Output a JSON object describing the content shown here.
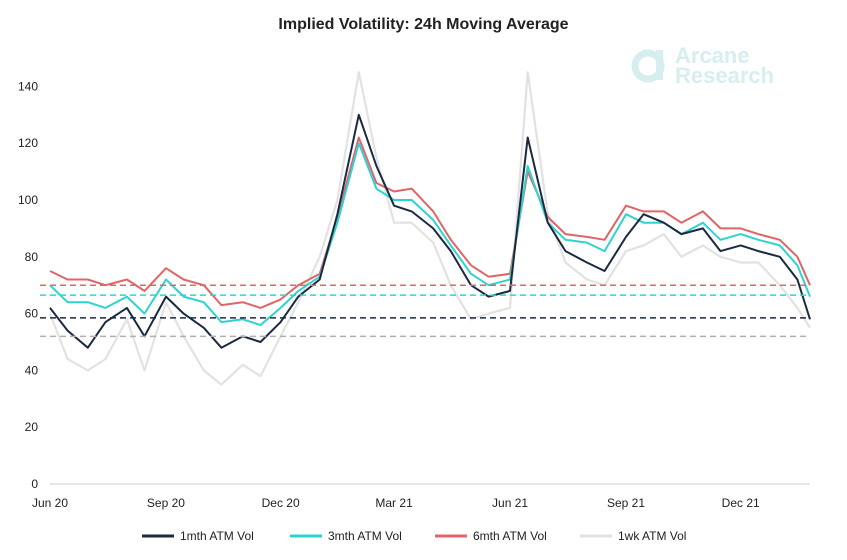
{
  "chart_data": {
    "type": "line",
    "title": "Implied Volatility: 24h Moving Average",
    "xlabel": "",
    "ylabel": "",
    "ylim": [
      0,
      150
    ],
    "yticks": [
      0,
      20,
      40,
      60,
      80,
      100,
      120,
      140
    ],
    "x_range": [
      "2020-06-01",
      "2022-01-25"
    ],
    "xticks": [
      {
        "date": "2020-06-01",
        "label": "Jun 20"
      },
      {
        "date": "2020-09-01",
        "label": "Sep 20"
      },
      {
        "date": "2020-12-01",
        "label": "Dec 20"
      },
      {
        "date": "2021-03-01",
        "label": "Mar 21"
      },
      {
        "date": "2021-06-01",
        "label": "Jun 21"
      },
      {
        "date": "2021-09-01",
        "label": "Sep 21"
      },
      {
        "date": "2021-12-01",
        "label": "Dec 21"
      }
    ],
    "grid": false,
    "legend_position": "bottom",
    "x": [
      "2020-06-01",
      "2020-06-15",
      "2020-07-01",
      "2020-07-15",
      "2020-08-01",
      "2020-08-15",
      "2020-09-01",
      "2020-09-15",
      "2020-10-01",
      "2020-10-15",
      "2020-11-01",
      "2020-11-15",
      "2020-12-01",
      "2020-12-15",
      "2021-01-01",
      "2021-01-15",
      "2021-02-01",
      "2021-02-15",
      "2021-03-01",
      "2021-03-15",
      "2021-04-01",
      "2021-04-15",
      "2021-05-01",
      "2021-05-15",
      "2021-06-01",
      "2021-06-15",
      "2021-07-01",
      "2021-07-15",
      "2021-08-01",
      "2021-08-15",
      "2021-09-01",
      "2021-09-15",
      "2021-10-01",
      "2021-10-15",
      "2021-11-01",
      "2021-11-15",
      "2021-12-01",
      "2021-12-15",
      "2022-01-01",
      "2022-01-15",
      "2022-01-25"
    ],
    "series": [
      {
        "name": "1mth ATM Vol",
        "color": "#1b2a41",
        "values": [
          62,
          54,
          48,
          57,
          62,
          52,
          66,
          60,
          55,
          48,
          52,
          50,
          57,
          66,
          72,
          95,
          130,
          112,
          98,
          96,
          90,
          82,
          70,
          66,
          68,
          122,
          92,
          82,
          78,
          75,
          87,
          95,
          92,
          88,
          90,
          82,
          84,
          82,
          80,
          72,
          58
        ]
      },
      {
        "name": "3mth ATM Vol",
        "color": "#2ed3d0",
        "values": [
          70,
          64,
          64,
          62,
          66,
          60,
          72,
          66,
          64,
          57,
          58,
          56,
          62,
          68,
          73,
          92,
          120,
          104,
          100,
          100,
          93,
          84,
          74,
          70,
          72,
          112,
          92,
          86,
          85,
          82,
          95,
          92,
          92,
          88,
          92,
          86,
          88,
          86,
          84,
          77,
          66
        ]
      },
      {
        "name": "6mth ATM Vol",
        "color": "#e06468",
        "values": [
          75,
          72,
          72,
          70,
          72,
          68,
          76,
          72,
          70,
          63,
          64,
          62,
          65,
          70,
          74,
          94,
          122,
          106,
          103,
          104,
          96,
          86,
          77,
          73,
          74,
          110,
          94,
          88,
          87,
          86,
          98,
          96,
          96,
          92,
          96,
          90,
          90,
          88,
          86,
          80,
          70
        ]
      },
      {
        "name": "1wk ATM Vol",
        "color": "#e2e2e2",
        "values": [
          60,
          44,
          40,
          44,
          58,
          40,
          64,
          52,
          40,
          35,
          42,
          38,
          52,
          64,
          80,
          100,
          145,
          115,
          92,
          92,
          85,
          70,
          58,
          60,
          62,
          145,
          95,
          78,
          72,
          70,
          82,
          84,
          88,
          80,
          84,
          80,
          78,
          78,
          70,
          62,
          55
        ]
      }
    ],
    "reference_lines": [
      {
        "series": "6mth ATM Vol",
        "value": 70,
        "color": "#e06468"
      },
      {
        "series": "3mth ATM Vol",
        "value": 66.5,
        "color": "#2ed3d0"
      },
      {
        "series": "1mth ATM Vol",
        "value": 58.5,
        "color": "#1b2a41"
      },
      {
        "series": "1wk ATM Vol",
        "value": 52,
        "color": "#b0b0b0"
      }
    ]
  },
  "logo": {
    "line1": "Arcane",
    "line2": "Research",
    "color": "#d6eef0"
  }
}
